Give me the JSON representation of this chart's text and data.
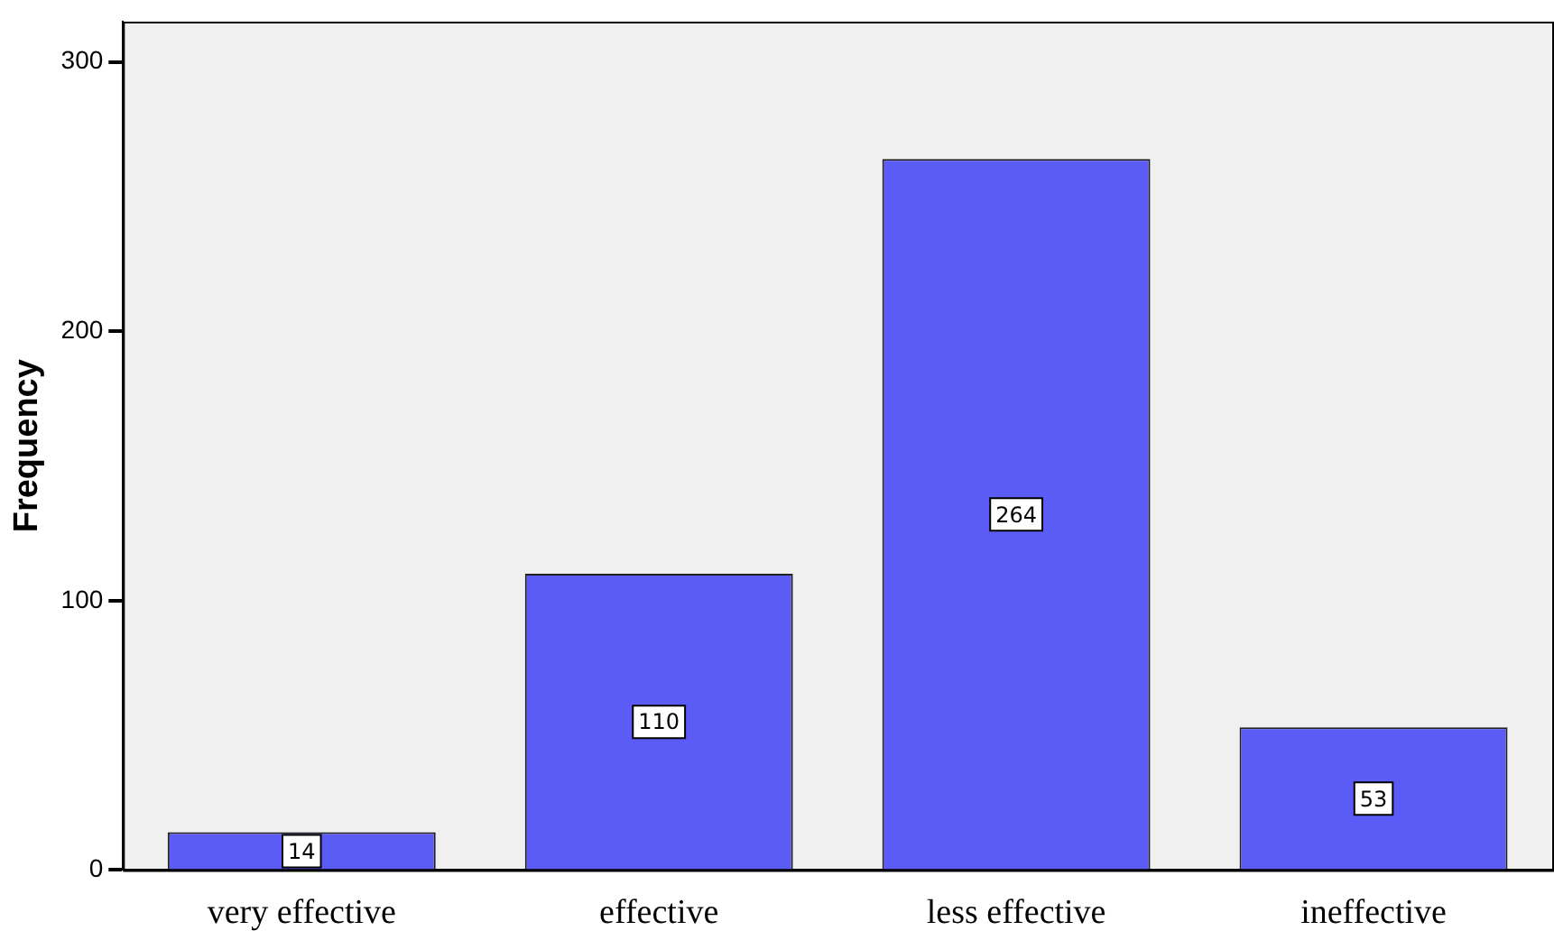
{
  "chart_data": {
    "type": "bar",
    "ylabel": "Frequency",
    "categories": [
      "very effective",
      "effective",
      "less effective",
      "ineffective"
    ],
    "values": [
      14,
      110,
      264,
      53
    ],
    "color": "#5b5bf5",
    "ylim": [
      0,
      315
    ],
    "yticks": [
      0,
      100,
      200,
      300
    ],
    "grid": false,
    "legend": false,
    "data_labels": true
  }
}
